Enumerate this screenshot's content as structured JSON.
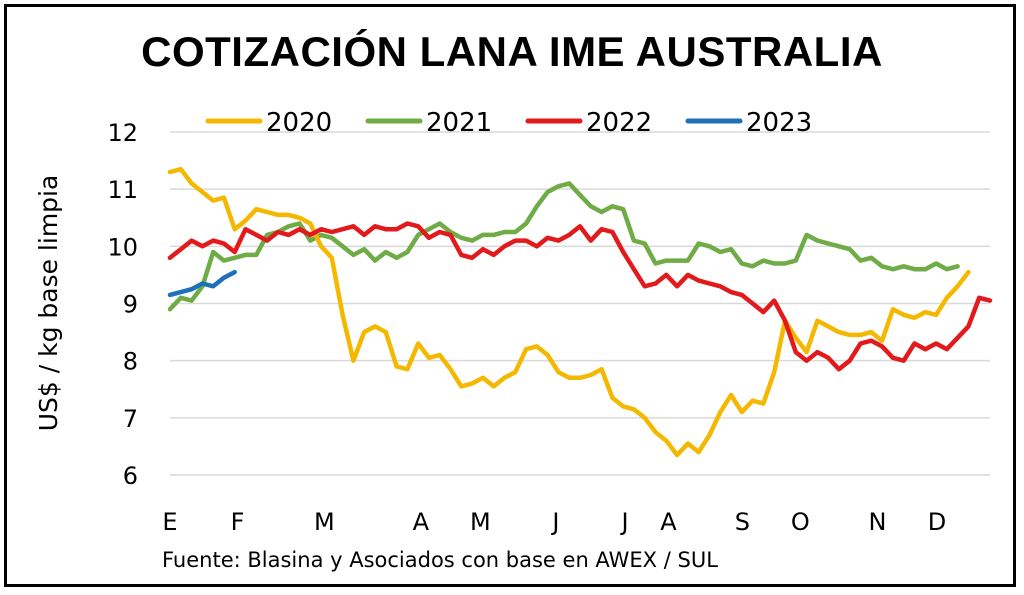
{
  "chart_data": {
    "type": "line",
    "title": "COTIZACIÓN LANA IME AUSTRALIA",
    "ylabel": "US$ / kg base limpia",
    "xlabel": "",
    "source": "Fuente: Blasina y Asociados con base en AWEX / SUL",
    "ylim": [
      6,
      12
    ],
    "yticks": [
      6,
      7,
      8,
      9,
      10,
      11,
      12
    ],
    "xlim": [
      0,
      51
    ],
    "x_month_labels": [
      {
        "label": "E",
        "week": 0
      },
      {
        "label": "F",
        "week": 4.2
      },
      {
        "label": "M",
        "week": 9.6
      },
      {
        "label": "A",
        "week": 15.6
      },
      {
        "label": "M",
        "week": 19.3
      },
      {
        "label": "J",
        "week": 24.0
      },
      {
        "label": "J",
        "week": 28.3
      },
      {
        "label": "A",
        "week": 31.0
      },
      {
        "label": "S",
        "week": 35.6
      },
      {
        "label": "O",
        "week": 39.2
      },
      {
        "label": "N",
        "week": 44.0
      },
      {
        "label": "D",
        "week": 47.7
      }
    ],
    "legend_position": "top",
    "series": [
      {
        "name": "2020",
        "color": "#f5b800",
        "values": [
          11.3,
          11.35,
          11.1,
          10.95,
          10.8,
          10.85,
          10.3,
          10.45,
          10.65,
          10.6,
          10.55,
          10.55,
          10.5,
          10.4,
          10.0,
          9.8,
          8.8,
          8.0,
          8.5,
          8.6,
          8.5,
          7.9,
          7.85,
          8.3,
          8.05,
          8.1,
          7.85,
          7.55,
          7.6,
          7.7,
          7.55,
          7.7,
          7.8,
          8.2,
          8.25,
          8.1,
          7.8,
          7.7,
          7.7,
          7.75,
          7.85,
          7.35,
          7.2,
          7.15,
          7.0,
          6.75,
          6.6,
          6.35,
          6.55,
          6.4,
          6.7,
          7.1,
          7.4,
          7.1,
          7.3,
          7.25,
          7.8,
          8.7,
          8.4,
          8.15,
          8.7,
          8.6,
          8.5,
          8.45,
          8.45,
          8.5,
          8.35,
          8.9,
          8.8,
          8.75,
          8.85,
          8.8,
          9.1,
          9.3,
          9.55
        ]
      },
      {
        "name": "2021",
        "color": "#6fac46",
        "values": [
          8.9,
          9.1,
          9.05,
          9.3,
          9.9,
          9.75,
          9.8,
          9.85,
          9.85,
          10.2,
          10.25,
          10.35,
          10.4,
          10.1,
          10.2,
          10.15,
          10.0,
          9.85,
          9.95,
          9.75,
          9.9,
          9.8,
          9.9,
          10.2,
          10.3,
          10.4,
          10.25,
          10.15,
          10.1,
          10.2,
          10.2,
          10.25,
          10.25,
          10.4,
          10.7,
          10.95,
          11.05,
          11.1,
          10.9,
          10.7,
          10.6,
          10.7,
          10.65,
          10.1,
          10.05,
          9.7,
          9.75,
          9.75,
          9.75,
          10.05,
          10.0,
          9.9,
          9.95,
          9.7,
          9.65,
          9.75,
          9.7,
          9.7,
          9.75,
          10.2,
          10.1,
          10.05,
          10.0,
          9.95,
          9.75,
          9.8,
          9.65,
          9.6,
          9.65,
          9.6,
          9.6,
          9.7,
          9.6,
          9.65
        ]
      },
      {
        "name": "2022",
        "color": "#e31a1c",
        "values": [
          9.8,
          9.95,
          10.1,
          10.0,
          10.1,
          10.05,
          9.9,
          10.3,
          10.2,
          10.1,
          10.25,
          10.2,
          10.3,
          10.2,
          10.3,
          10.25,
          10.3,
          10.35,
          10.2,
          10.35,
          10.3,
          10.3,
          10.4,
          10.35,
          10.15,
          10.25,
          10.2,
          9.85,
          9.8,
          9.95,
          9.85,
          10.0,
          10.1,
          10.1,
          10.0,
          10.15,
          10.1,
          10.2,
          10.35,
          10.1,
          10.3,
          10.25,
          9.9,
          9.6,
          9.3,
          9.35,
          9.5,
          9.3,
          9.5,
          9.4,
          9.35,
          9.3,
          9.2,
          9.15,
          9.0,
          8.85,
          9.05,
          8.7,
          8.15,
          8.0,
          8.15,
          8.05,
          7.85,
          8.0,
          8.3,
          8.35,
          8.25,
          8.05,
          8.0,
          8.3,
          8.2,
          8.3,
          8.2,
          8.4,
          8.6,
          9.1,
          9.05
        ]
      },
      {
        "name": "2023",
        "color": "#1f70b8",
        "values": [
          9.15,
          9.2,
          9.25,
          9.35,
          9.3,
          9.45,
          9.55
        ]
      }
    ]
  }
}
